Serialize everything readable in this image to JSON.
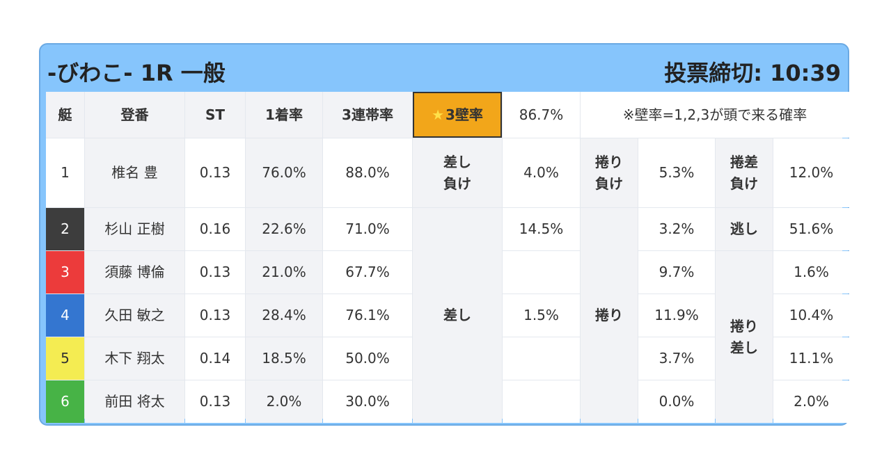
{
  "header": {
    "title": "-びわこ- 1R 一般",
    "deadline": "投票締切: 10:39"
  },
  "columns": {
    "boat": "艇",
    "name": "登番",
    "st": "ST",
    "first": "1着率",
    "top3": "3連帯率",
    "wall_rate": "3壁率",
    "wall_value": "86.7%",
    "note": "※壁率=1,2,3が頭で来る確率"
  },
  "rows": [
    {
      "boat": "1",
      "name": "椎名 豊",
      "st": "0.13",
      "first": "76.0%",
      "top3": "88.0%"
    },
    {
      "boat": "2",
      "name": "杉山 正樹",
      "st": "0.16",
      "first": "22.6%",
      "top3": "71.0%"
    },
    {
      "boat": "3",
      "name": "須藤 博倫",
      "st": "0.13",
      "first": "21.0%",
      "top3": "67.7%"
    },
    {
      "boat": "4",
      "name": "久田 敏之",
      "st": "0.13",
      "first": "28.4%",
      "top3": "76.1%"
    },
    {
      "boat": "5",
      "name": "木下 翔太",
      "st": "0.14",
      "first": "18.5%",
      "top3": "50.0%"
    },
    {
      "boat": "6",
      "name": "前田 将太",
      "st": "0.13",
      "first": "2.0%",
      "top3": "30.0%"
    }
  ],
  "lose": {
    "sashi_label_1": "差し",
    "sashi_label_2": "負け",
    "sashi_val": "4.0%",
    "makuri_label_1": "捲り",
    "makuri_label_2": "負け",
    "makuri_val": "5.3%",
    "makurisashi_label_1": "捲差",
    "makurisashi_label_2": "負け",
    "makurisashi_val": "12.0%"
  },
  "boat2": {
    "nige_label": "逃し",
    "nige_val": "51.6%"
  },
  "win": {
    "sashi_label": "差し",
    "sashi_vals": [
      "14.5%",
      "",
      "1.5%",
      "",
      ""
    ],
    "makuri_label": "捲り",
    "makuri_vals": [
      "3.2%",
      "9.7%",
      "11.9%",
      "3.7%",
      "0.0%"
    ],
    "makurisashi_label_1": "捲り",
    "makurisashi_label_2": "差し",
    "makurisashi_vals": [
      "1.6%",
      "10.4%",
      "11.1%",
      "2.0%"
    ]
  }
}
